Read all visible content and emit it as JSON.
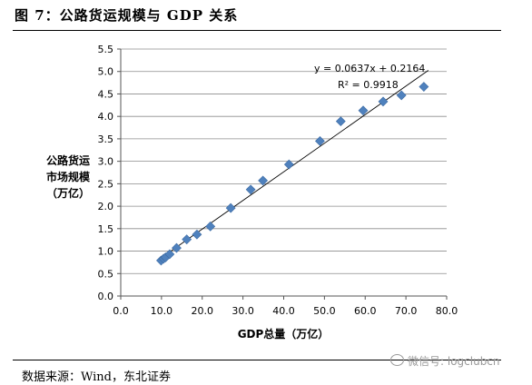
{
  "figure": {
    "title": "图 7：公路货运规模与 GDP 关系",
    "source": "数据来源：Wind，东北证券",
    "watermark": "微信号: logclubcn"
  },
  "chart_data": {
    "type": "scatter",
    "xlabel": "GDP总量（万亿）",
    "ylabel_lines": [
      "公路货运",
      "市场规模",
      "（万亿）"
    ],
    "xlim": [
      0,
      80
    ],
    "ylim": [
      0,
      5.5
    ],
    "x_ticks": [
      "0.0",
      "10.0",
      "20.0",
      "30.0",
      "40.0",
      "50.0",
      "60.0",
      "70.0",
      "80.0"
    ],
    "y_ticks": [
      "0.0",
      "0.5",
      "1.0",
      "1.5",
      "2.0",
      "2.5",
      "3.0",
      "3.5",
      "4.0",
      "4.5",
      "5.0",
      "5.5"
    ],
    "grid": "horizontal",
    "marker_color": "#4f81bd",
    "trendline": {
      "slope": 0.0637,
      "intercept": 0.2164,
      "color": "#000000"
    },
    "annotations": {
      "equation": "y = 0.0637x + 0.2164",
      "r2": "R² = 0.9918"
    },
    "points": [
      {
        "x": 9.9,
        "y": 0.79
      },
      {
        "x": 10.5,
        "y": 0.83
      },
      {
        "x": 11.0,
        "y": 0.86
      },
      {
        "x": 12.0,
        "y": 0.93
      },
      {
        "x": 13.7,
        "y": 1.07
      },
      {
        "x": 16.2,
        "y": 1.26
      },
      {
        "x": 18.7,
        "y": 1.37
      },
      {
        "x": 22.0,
        "y": 1.55
      },
      {
        "x": 27.0,
        "y": 1.96
      },
      {
        "x": 31.9,
        "y": 2.37
      },
      {
        "x": 34.9,
        "y": 2.57
      },
      {
        "x": 41.3,
        "y": 2.93
      },
      {
        "x": 48.9,
        "y": 3.45
      },
      {
        "x": 54.0,
        "y": 3.89
      },
      {
        "x": 59.5,
        "y": 4.13
      },
      {
        "x": 64.4,
        "y": 4.33
      },
      {
        "x": 68.9,
        "y": 4.47
      },
      {
        "x": 74.4,
        "y": 4.66
      }
    ]
  }
}
